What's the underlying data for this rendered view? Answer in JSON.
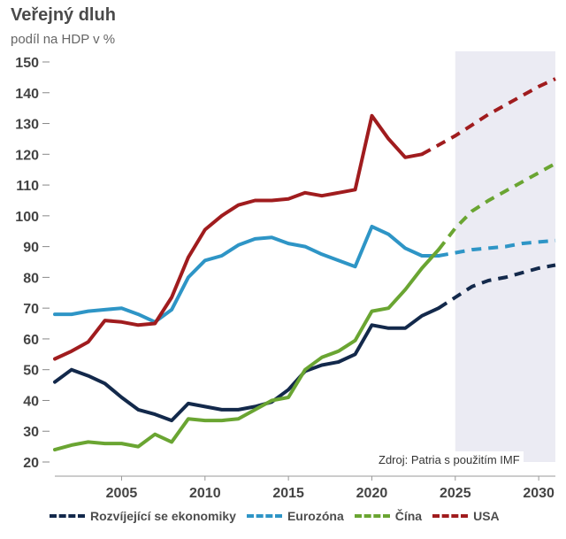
{
  "chart_data": {
    "type": "line",
    "title": "Veřejný dluh",
    "subtitle": "podíl na HDP v %",
    "source": "Zdroj: Patria s použitím IMF",
    "xlim": [
      2001,
      2031
    ],
    "ylim": [
      20,
      150
    ],
    "x_ticks": [
      2005,
      2010,
      2015,
      2020,
      2025,
      2030
    ],
    "y_ticks": [
      20,
      30,
      40,
      50,
      60,
      70,
      80,
      90,
      100,
      110,
      120,
      130,
      140,
      150
    ],
    "forecast_start": 2025,
    "series": [
      {
        "name": "Rozvíjející se ekonomiky",
        "color": "#13294b",
        "x": [
          2001,
          2002,
          2003,
          2004,
          2005,
          2006,
          2007,
          2008,
          2009,
          2010,
          2011,
          2012,
          2013,
          2014,
          2015,
          2016,
          2017,
          2018,
          2019,
          2020,
          2021,
          2022,
          2023,
          2024
        ],
        "values": [
          46,
          50,
          48,
          45.5,
          41,
          37,
          35.5,
          33.5,
          39,
          38,
          37,
          37,
          38,
          39.5,
          43.5,
          49.5,
          51.5,
          52.5,
          55,
          64.5,
          63.5,
          63.5,
          67.5,
          70
        ],
        "forecast_x": [
          2024,
          2025,
          2026,
          2027,
          2028,
          2029,
          2030,
          2031
        ],
        "forecast_values": [
          70,
          73.5,
          77,
          79,
          80,
          81.5,
          83,
          84
        ]
      },
      {
        "name": "Eurozóna",
        "color": "#2e95c6",
        "x": [
          2001,
          2002,
          2003,
          2004,
          2005,
          2006,
          2007,
          2008,
          2009,
          2010,
          2011,
          2012,
          2013,
          2014,
          2015,
          2016,
          2017,
          2018,
          2019,
          2020,
          2021,
          2022,
          2023,
          2024
        ],
        "values": [
          68,
          68,
          69,
          69.5,
          70,
          68,
          65.5,
          69.5,
          80,
          85.5,
          87,
          90.5,
          92.5,
          93,
          91,
          90,
          87.5,
          85.5,
          83.5,
          96.5,
          94,
          89.5,
          87,
          87
        ],
        "forecast_x": [
          2024,
          2025,
          2026,
          2027,
          2028,
          2029,
          2030,
          2031
        ],
        "forecast_values": [
          87,
          88,
          89,
          89.5,
          90,
          91,
          91.5,
          92
        ]
      },
      {
        "name": "Čína",
        "color": "#6aa532",
        "x": [
          2001,
          2002,
          2003,
          2004,
          2005,
          2006,
          2007,
          2008,
          2009,
          2010,
          2011,
          2012,
          2013,
          2014,
          2015,
          2016,
          2017,
          2018,
          2019,
          2020,
          2021,
          2022,
          2023,
          2024
        ],
        "values": [
          24,
          25.5,
          26.5,
          26,
          26,
          25,
          29,
          26.5,
          34,
          33.5,
          33.5,
          34,
          37,
          40,
          41,
          50,
          54,
          56,
          59.5,
          69,
          70,
          76,
          83,
          89
        ],
        "forecast_x": [
          2024,
          2025,
          2026,
          2027,
          2028,
          2029,
          2030,
          2031
        ],
        "forecast_values": [
          89,
          96,
          101.5,
          105,
          108,
          111,
          114,
          117
        ]
      },
      {
        "name": "USA",
        "color": "#a01c1e",
        "x": [
          2001,
          2002,
          2003,
          2004,
          2005,
          2006,
          2007,
          2008,
          2009,
          2010,
          2011,
          2012,
          2013,
          2014,
          2015,
          2016,
          2017,
          2018,
          2019,
          2020,
          2021,
          2022,
          2023
        ],
        "values": [
          53.5,
          56,
          59,
          66,
          65.5,
          64.5,
          65,
          73.5,
          86.5,
          95.5,
          100,
          103.5,
          105,
          105,
          105.5,
          107.5,
          106.5,
          107.5,
          108.5,
          132.5,
          125,
          119,
          120
        ],
        "forecast_x": [
          2023,
          2024,
          2025,
          2026,
          2027,
          2028,
          2029,
          2030,
          2031
        ],
        "forecast_values": [
          120,
          123,
          126,
          129.5,
          133,
          136,
          139,
          142,
          144.5
        ]
      }
    ]
  }
}
